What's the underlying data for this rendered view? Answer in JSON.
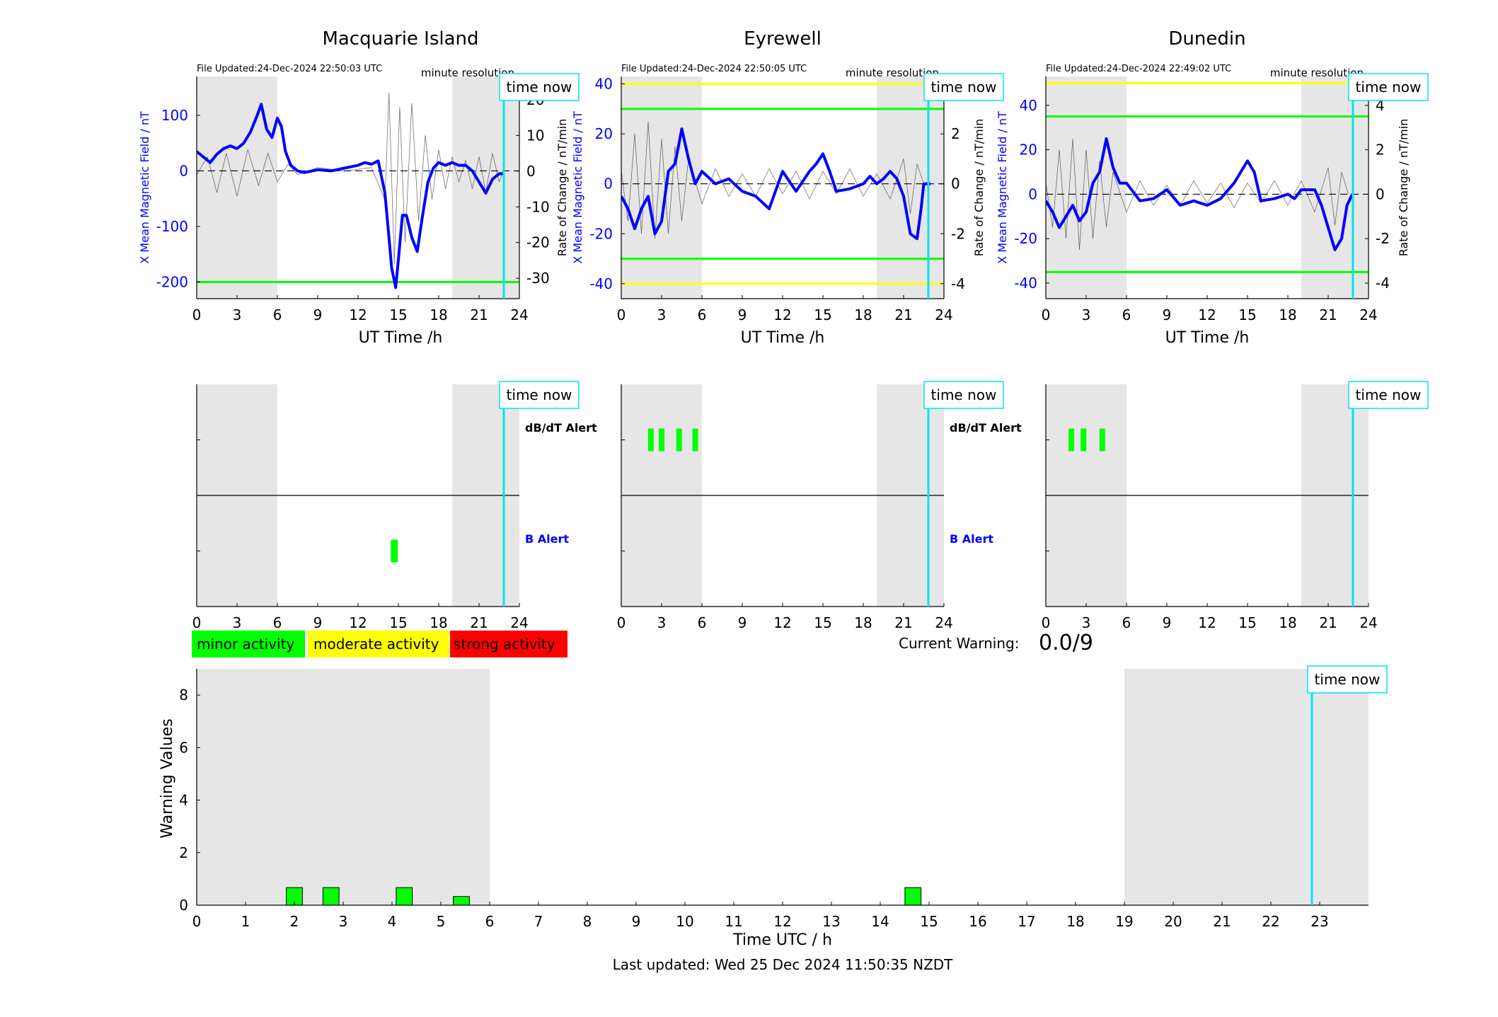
{
  "colors": {
    "x_mean": "#0000ff",
    "rate_trace": "#000000",
    "night_shade": "#e6e6e6",
    "time_now": "#00e5ee",
    "minor": "#00ff00",
    "moderate": "#ffff00",
    "strong": "#ff0000",
    "mid_line": "#000000"
  },
  "common": {
    "xlabel": "UT Time /h",
    "y_left_label": "X Mean Magnetic Field / nT",
    "y_right_label": "Rate of Change / nT/min",
    "minute_resolution": "minute resolution",
    "time_now_label": "time now",
    "dbdt_alert_label": "dB/dT Alert",
    "b_alert_label": "B Alert"
  },
  "legend": {
    "minor": "minor activity",
    "moderate": "moderate activity",
    "strong": "strong activity"
  },
  "current_warning": {
    "label": "Current Warning:",
    "value": "0.0/9"
  },
  "footer": {
    "last_updated": "Last updated: Wed 25 Dec 2024 11:50:35 NZDT"
  },
  "chart_data": [
    {
      "type": "line",
      "title": "Macquarie Island",
      "file_updated": "File Updated:24-Dec-2024 22:50:03 UTC",
      "xlim": [
        0,
        24
      ],
      "x_ticks": [
        0,
        3,
        6,
        9,
        12,
        15,
        18,
        21,
        24
      ],
      "ylim_left": [
        -230,
        170
      ],
      "y_ticks_left": [
        -200,
        -100,
        0,
        100
      ],
      "ylim_right": [
        -35.7,
        26.5
      ],
      "y_ticks_right": [
        -30,
        -20,
        -10,
        0,
        10,
        20
      ],
      "night_bands": [
        [
          0,
          6
        ],
        [
          19,
          24
        ]
      ],
      "time_now_x": 22.84,
      "green_lines_left": [
        -200
      ],
      "yellow_lines_left": [],
      "series_x": [
        [
          0,
          35
        ],
        [
          0.5,
          25
        ],
        [
          1,
          15
        ],
        [
          1.5,
          30
        ],
        [
          2,
          40
        ],
        [
          2.5,
          45
        ],
        [
          3,
          40
        ],
        [
          3.5,
          50
        ],
        [
          4,
          70
        ],
        [
          4.5,
          100
        ],
        [
          4.8,
          120
        ],
        [
          5.2,
          75
        ],
        [
          5.6,
          60
        ],
        [
          6,
          95
        ],
        [
          6.3,
          80
        ],
        [
          6.6,
          35
        ],
        [
          7,
          10
        ],
        [
          7.5,
          0
        ],
        [
          8,
          -3
        ],
        [
          9,
          2
        ],
        [
          10,
          0
        ],
        [
          11,
          5
        ],
        [
          12,
          10
        ],
        [
          12.5,
          15
        ],
        [
          13,
          12
        ],
        [
          13.5,
          18
        ],
        [
          14,
          -40
        ],
        [
          14.3,
          -120
        ],
        [
          14.5,
          -175
        ],
        [
          14.8,
          -210
        ],
        [
          15,
          -160
        ],
        [
          15.3,
          -80
        ],
        [
          15.6,
          -80
        ],
        [
          16,
          -120
        ],
        [
          16.4,
          -145
        ],
        [
          16.8,
          -80
        ],
        [
          17.2,
          -20
        ],
        [
          17.6,
          5
        ],
        [
          18,
          15
        ],
        [
          18.5,
          10
        ],
        [
          19,
          15
        ],
        [
          19.5,
          10
        ],
        [
          20,
          10
        ],
        [
          20.5,
          0
        ],
        [
          21,
          -20
        ],
        [
          21.5,
          -40
        ],
        [
          22,
          -15
        ],
        [
          22.5,
          -5
        ],
        [
          22.8,
          -5
        ]
      ],
      "series_rate": [
        [
          0,
          -1
        ],
        [
          0.8,
          4
        ],
        [
          1.5,
          -6
        ],
        [
          2.2,
          5
        ],
        [
          3,
          -7
        ],
        [
          3.8,
          6
        ],
        [
          4.6,
          -4
        ],
        [
          5.3,
          5
        ],
        [
          6,
          -3
        ],
        [
          6.8,
          2
        ],
        [
          7.5,
          -1
        ],
        [
          9,
          1
        ],
        [
          11,
          0
        ],
        [
          13,
          1
        ],
        [
          14,
          -8
        ],
        [
          14.3,
          22
        ],
        [
          14.7,
          -26
        ],
        [
          15.1,
          18
        ],
        [
          15.5,
          -20
        ],
        [
          16,
          19
        ],
        [
          16.5,
          -14
        ],
        [
          17,
          10
        ],
        [
          17.5,
          -8
        ],
        [
          18,
          6
        ],
        [
          18.5,
          -5
        ],
        [
          19,
          4
        ],
        [
          19.5,
          -3
        ],
        [
          20,
          3
        ],
        [
          20.5,
          -5
        ],
        [
          21,
          4
        ],
        [
          21.5,
          -6
        ],
        [
          22,
          5
        ],
        [
          22.5,
          -3
        ],
        [
          22.8,
          0
        ]
      ],
      "alerts_dbdt": [],
      "alerts_b": [
        [
          14.7,
          0.15
        ]
      ]
    },
    {
      "type": "line",
      "title": "Eyrewell",
      "file_updated": "File Updated:24-Dec-2024 22:50:05 UTC",
      "xlim": [
        0,
        24
      ],
      "x_ticks": [
        0,
        3,
        6,
        9,
        12,
        15,
        18,
        21,
        24
      ],
      "ylim_left": [
        -46,
        43
      ],
      "y_ticks_left": [
        -40,
        -20,
        0,
        20,
        40
      ],
      "ylim_right": [
        -4.6,
        4.3
      ],
      "y_ticks_right": [
        -4,
        -2,
        0,
        2,
        4
      ],
      "night_bands": [
        [
          0,
          6
        ],
        [
          19,
          24
        ]
      ],
      "time_now_x": 22.84,
      "green_lines_left": [
        30,
        -30
      ],
      "yellow_lines_left": [
        40,
        -40
      ],
      "series_x": [
        [
          0,
          -5
        ],
        [
          0.5,
          -10
        ],
        [
          1,
          -18
        ],
        [
          1.5,
          -10
        ],
        [
          2,
          -5
        ],
        [
          2.5,
          -20
        ],
        [
          3,
          -15
        ],
        [
          3.5,
          5
        ],
        [
          4,
          8
        ],
        [
          4.5,
          22
        ],
        [
          5,
          10
        ],
        [
          5.5,
          0
        ],
        [
          6,
          5
        ],
        [
          7,
          0
        ],
        [
          8,
          2
        ],
        [
          9,
          -3
        ],
        [
          10,
          -5
        ],
        [
          11,
          -10
        ],
        [
          12,
          5
        ],
        [
          13,
          -3
        ],
        [
          14,
          5
        ],
        [
          14.5,
          8
        ],
        [
          15,
          12
        ],
        [
          15.5,
          5
        ],
        [
          16,
          -3
        ],
        [
          17,
          -2
        ],
        [
          18,
          0
        ],
        [
          18.5,
          3
        ],
        [
          19,
          0
        ],
        [
          19.5,
          2
        ],
        [
          20,
          5
        ],
        [
          20.5,
          2
        ],
        [
          21,
          -5
        ],
        [
          21.5,
          -20
        ],
        [
          22,
          -22
        ],
        [
          22.3,
          -10
        ],
        [
          22.5,
          0
        ],
        [
          23,
          0
        ]
      ],
      "series_rate": [
        [
          0,
          0.5
        ],
        [
          0.5,
          -1.5
        ],
        [
          1,
          2
        ],
        [
          1.5,
          -2
        ],
        [
          2,
          2.5
        ],
        [
          2.5,
          -2.2
        ],
        [
          3,
          1.8
        ],
        [
          3.5,
          -2
        ],
        [
          4,
          1.5
        ],
        [
          4.5,
          -1.5
        ],
        [
          5,
          1
        ],
        [
          6,
          -0.8
        ],
        [
          7,
          0.6
        ],
        [
          8,
          -0.5
        ],
        [
          9,
          0.4
        ],
        [
          10,
          -0.5
        ],
        [
          11,
          0.6
        ],
        [
          12,
          -0.4
        ],
        [
          13,
          0.5
        ],
        [
          14,
          -0.6
        ],
        [
          15,
          0.5
        ],
        [
          16,
          -0.4
        ],
        [
          17,
          0.6
        ],
        [
          18,
          -0.5
        ],
        [
          19,
          0.4
        ],
        [
          20,
          -0.6
        ],
        [
          21,
          1
        ],
        [
          21.5,
          -1.2
        ],
        [
          22,
          0.8
        ],
        [
          22.5,
          0
        ]
      ],
      "alerts_dbdt": [
        [
          2.2,
          0.12
        ],
        [
          3.0,
          0.12
        ],
        [
          4.3,
          0.12
        ],
        [
          5.5,
          0.12
        ]
      ],
      "alerts_b": []
    },
    {
      "type": "line",
      "title": "Dunedin",
      "file_updated": "File Updated:24-Dec-2024 22:49:02 UTC",
      "xlim": [
        0,
        24
      ],
      "x_ticks": [
        0,
        3,
        6,
        9,
        12,
        15,
        18,
        21,
        24
      ],
      "ylim_left": [
        -47,
        53
      ],
      "y_ticks_left": [
        -40,
        -20,
        0,
        20,
        40
      ],
      "ylim_right": [
        -4.7,
        5.3
      ],
      "y_ticks_right": [
        -4,
        -2,
        0,
        2,
        4
      ],
      "night_bands": [
        [
          0,
          6
        ],
        [
          19,
          24
        ]
      ],
      "time_now_x": 22.84,
      "green_lines_left": [
        35,
        -35
      ],
      "yellow_lines_left": [
        50
      ],
      "series_x": [
        [
          0,
          -3
        ],
        [
          0.5,
          -8
        ],
        [
          1,
          -15
        ],
        [
          1.5,
          -10
        ],
        [
          2,
          -5
        ],
        [
          2.5,
          -12
        ],
        [
          3,
          -8
        ],
        [
          3.5,
          5
        ],
        [
          4,
          10
        ],
        [
          4.5,
          25
        ],
        [
          5,
          12
        ],
        [
          5.5,
          5
        ],
        [
          6,
          5
        ],
        [
          7,
          -3
        ],
        [
          8,
          -2
        ],
        [
          9,
          2
        ],
        [
          10,
          -5
        ],
        [
          11,
          -3
        ],
        [
          12,
          -5
        ],
        [
          13,
          -2
        ],
        [
          14,
          5
        ],
        [
          14.5,
          10
        ],
        [
          15,
          15
        ],
        [
          15.5,
          10
        ],
        [
          16,
          -3
        ],
        [
          17,
          -2
        ],
        [
          18,
          0
        ],
        [
          18.5,
          -2
        ],
        [
          19,
          2
        ],
        [
          20,
          2
        ],
        [
          20.5,
          -5
        ],
        [
          21,
          -15
        ],
        [
          21.5,
          -25
        ],
        [
          22,
          -20
        ],
        [
          22.4,
          -5
        ],
        [
          22.8,
          0
        ]
      ],
      "series_rate": [
        [
          0,
          0.5
        ],
        [
          0.5,
          -1.5
        ],
        [
          1,
          2
        ],
        [
          1.5,
          -2
        ],
        [
          2,
          2.5
        ],
        [
          2.5,
          -2.5
        ],
        [
          3,
          2
        ],
        [
          3.5,
          -2
        ],
        [
          4,
          1.5
        ],
        [
          4.5,
          -1.5
        ],
        [
          5,
          1
        ],
        [
          6,
          -0.8
        ],
        [
          7,
          0.6
        ],
        [
          8,
          -0.5
        ],
        [
          9,
          0.4
        ],
        [
          10,
          -0.5
        ],
        [
          11,
          0.6
        ],
        [
          12,
          -0.4
        ],
        [
          13,
          0.5
        ],
        [
          14,
          -0.6
        ],
        [
          15,
          0.5
        ],
        [
          16,
          -0.4
        ],
        [
          17,
          0.6
        ],
        [
          18,
          -0.5
        ],
        [
          19,
          0.6
        ],
        [
          20,
          -0.8
        ],
        [
          21,
          1.2
        ],
        [
          21.5,
          -1.4
        ],
        [
          22,
          1
        ],
        [
          22.5,
          0
        ]
      ],
      "alerts_dbdt": [
        [
          1.9,
          0.12
        ],
        [
          2.8,
          0.12
        ],
        [
          4.2,
          0.12
        ]
      ],
      "alerts_b": []
    },
    {
      "type": "bar",
      "title": "",
      "xlabel": "Time UTC / h",
      "ylabel": "Warning Values",
      "xlim": [
        0,
        24
      ],
      "x_ticks": [
        0,
        1,
        2,
        3,
        4,
        5,
        6,
        7,
        8,
        9,
        10,
        11,
        12,
        13,
        14,
        15,
        16,
        17,
        18,
        19,
        20,
        21,
        22,
        23
      ],
      "ylim": [
        0,
        9
      ],
      "y_ticks": [
        0,
        2,
        4,
        6,
        8
      ],
      "night_bands": [
        [
          0,
          6
        ],
        [
          19,
          24
        ]
      ],
      "time_now_x": 22.84,
      "bars": [
        {
          "x": 2.0,
          "value": 0.67
        },
        {
          "x": 2.75,
          "value": 0.67
        },
        {
          "x": 4.25,
          "value": 0.67
        },
        {
          "x": 5.42,
          "value": 0.33
        },
        {
          "x": 14.67,
          "value": 0.67
        }
      ]
    }
  ]
}
